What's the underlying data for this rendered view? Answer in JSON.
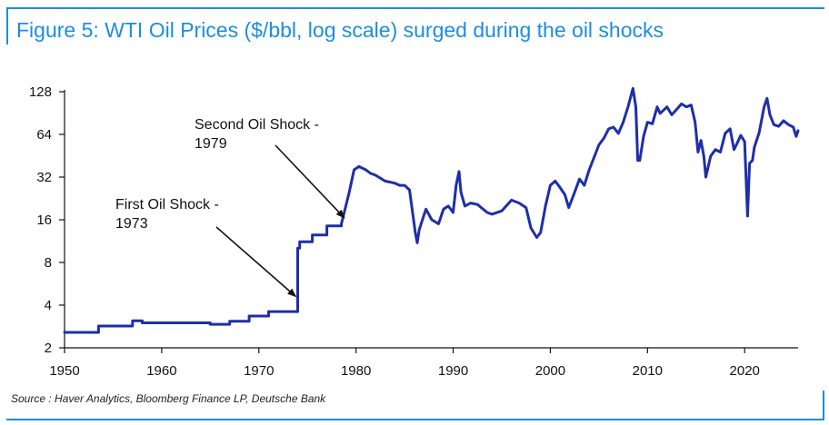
{
  "title": "Figure 5: WTI Oil Prices ($/bbl, log scale) surged during the oil shocks",
  "source": "Source : Haver Analytics, Bloomberg Finance LP, Deutsche Bank",
  "colors": {
    "accent": "#1b8ee0",
    "series": "#1f2ea8"
  },
  "chart_data": {
    "type": "line",
    "title": "Figure 5: WTI Oil Prices ($/bbl, log scale) surged during the oil shocks",
    "xlabel": "",
    "ylabel": "",
    "y_scale": "log2",
    "xlim": [
      1950,
      2025.5
    ],
    "ylim": [
      2,
      128
    ],
    "x_ticks": [
      1950,
      1960,
      1970,
      1980,
      1990,
      2000,
      2010,
      2020
    ],
    "y_ticks": [
      2,
      4,
      8,
      16,
      32,
      64,
      128
    ],
    "grid": false,
    "legend": "none",
    "annotations": [
      {
        "lines": [
          "First Oil Shock -",
          "1973"
        ],
        "points_to": [
          1973.8,
          4.6
        ]
      },
      {
        "lines": [
          "Second Oil Shock -",
          "1979"
        ],
        "points_to": [
          1978.8,
          16.5
        ]
      }
    ],
    "series": [
      {
        "x": [
          1950,
          1953.5,
          1953.5,
          1957,
          1957,
          1958,
          1958,
          1965,
          1965,
          1967,
          1967,
          1969,
          1969,
          1971,
          1971,
          1974,
          1974,
          1974,
          1974.2,
          1974.2,
          1975.5,
          1975.5,
          1977,
          1977,
          1978.5,
          1978.5,
          1979.3,
          1979.8,
          1980.3,
          1981,
          1981.5,
          1982,
          1983,
          1984,
          1984.5,
          1985,
          1985.5,
          1986.1,
          1986.3,
          1986.5,
          1986.7,
          1987.2,
          1987.8,
          1988.5,
          1989,
          1989.5,
          1990,
          1990.3,
          1990.6,
          1990.8,
          1991.2,
          1991.8,
          1992.5,
          1993.5,
          1994,
          1995,
          1996,
          1996.8,
          1997.5,
          1998,
          1998.6,
          1999,
          1999.5,
          2000,
          2000.5,
          2001,
          2001.5,
          2001.9,
          2002.5,
          2003,
          2003.5,
          2004,
          2004.5,
          2005,
          2005.5,
          2006,
          2006.5,
          2007,
          2007.5,
          2008,
          2008.5,
          2008.8,
          2009,
          2009.2,
          2009.6,
          2010,
          2010.5,
          2011,
          2011.3,
          2011.8,
          2012,
          2012.5,
          2013,
          2013.5,
          2014,
          2014.5,
          2014.9,
          2015.2,
          2015.5,
          2015.8,
          2016,
          2016.5,
          2017,
          2017.5,
          2018,
          2018.5,
          2018.9,
          2019.2,
          2019.6,
          2020,
          2020.3,
          2020.5,
          2020.8,
          2021,
          2021.5,
          2022,
          2022.3,
          2022.6,
          2023,
          2023.5,
          2024,
          2024.5,
          2025,
          2025.3,
          2025.5
        ],
        "y": [
          2.57,
          2.57,
          2.85,
          2.85,
          3.1,
          3.1,
          3.0,
          3.0,
          2.93,
          2.93,
          3.08,
          3.08,
          3.35,
          3.35,
          3.6,
          3.6,
          4.3,
          10.1,
          10.1,
          11.2,
          11.2,
          12.5,
          12.5,
          14.5,
          14.5,
          15.0,
          25.0,
          36.0,
          38.0,
          36.0,
          34.0,
          33.0,
          30.0,
          29.0,
          28.0,
          28.0,
          26.0,
          13.0,
          11.0,
          13.5,
          15.0,
          19.0,
          16.0,
          15.0,
          19.0,
          20.0,
          18.0,
          28.0,
          35.0,
          25.0,
          20.0,
          21.0,
          20.5,
          18.0,
          17.5,
          18.5,
          22.0,
          21.0,
          19.5,
          14.0,
          12.0,
          13.0,
          20.0,
          28.0,
          30.0,
          27.0,
          24.0,
          19.5,
          25.0,
          31.0,
          28.0,
          36.0,
          44.0,
          54.0,
          60.0,
          70.0,
          72.0,
          65.0,
          78.0,
          100.0,
          135.0,
          100.0,
          42.0,
          42.0,
          62.0,
          78.0,
          76.0,
          100.0,
          90.0,
          97.0,
          100.0,
          88.0,
          96.0,
          105.0,
          100.0,
          103.0,
          78.0,
          48.0,
          58.0,
          45.0,
          32.0,
          45.0,
          50.0,
          48.0,
          65.0,
          70.0,
          50.0,
          55.0,
          63.0,
          57.0,
          17.0,
          40.0,
          42.0,
          52.0,
          66.0,
          100.0,
          115.0,
          88.0,
          75.0,
          73.0,
          80.0,
          75.0,
          72.0,
          62.0,
          68.0
        ]
      }
    ]
  }
}
